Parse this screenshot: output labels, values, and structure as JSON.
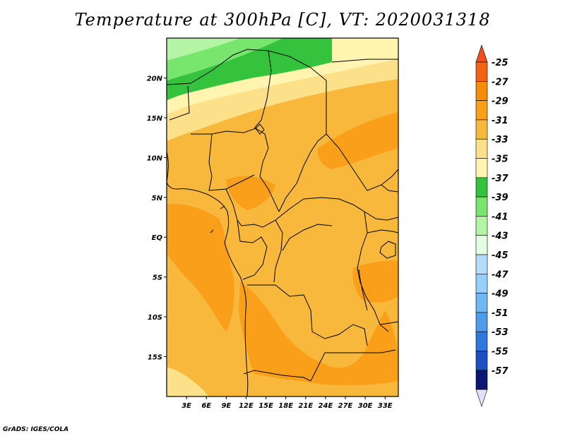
{
  "title": "Temperature at 300hPa [C], VT: 2020031318",
  "credit": "GrADS: IGES/COLA",
  "map": {
    "lon_range": [
      0,
      35
    ],
    "lat_range": [
      -20,
      25
    ],
    "lat_ticks": [
      {
        "value": 20,
        "label": "20N"
      },
      {
        "value": 15,
        "label": "15N"
      },
      {
        "value": 10,
        "label": "10N"
      },
      {
        "value": 5,
        "label": "5N"
      },
      {
        "value": 0,
        "label": "EQ"
      },
      {
        "value": -5,
        "label": "5S"
      },
      {
        "value": -10,
        "label": "10S"
      },
      {
        "value": -15,
        "label": "15S"
      }
    ],
    "lon_ticks": [
      {
        "value": 3,
        "label": "3E"
      },
      {
        "value": 6,
        "label": "6E"
      },
      {
        "value": 9,
        "label": "9E"
      },
      {
        "value": 12,
        "label": "12E"
      },
      {
        "value": 15,
        "label": "15E"
      },
      {
        "value": 18,
        "label": "18E"
      },
      {
        "value": 21,
        "label": "21E"
      },
      {
        "value": 24,
        "label": "24E"
      },
      {
        "value": 27,
        "label": "27E"
      },
      {
        "value": 30,
        "label": "30E"
      },
      {
        "value": 33,
        "label": "33E"
      }
    ]
  },
  "colorbar": {
    "top_arrow_color": "#f0501e",
    "bottom_arrow_color": "#e1e1fa",
    "bins": [
      {
        "label": "-25",
        "color": "#f06414"
      },
      {
        "label": "-27",
        "color": "#f58c0a"
      },
      {
        "label": "-29",
        "color": "#fa9f19"
      },
      {
        "label": "-31",
        "color": "#f8b83c"
      },
      {
        "label": "-33",
        "color": "#fde08a"
      },
      {
        "label": "-35",
        "color": "#fff5b0"
      },
      {
        "label": "-37",
        "color": "#35c33e"
      },
      {
        "label": "-39",
        "color": "#78e56c"
      },
      {
        "label": "-41",
        "color": "#b4f5a5"
      },
      {
        "label": "-43",
        "color": "#e2fde2"
      },
      {
        "label": "-45",
        "color": "#b4dcf9"
      },
      {
        "label": "-47",
        "color": "#96d0f8"
      },
      {
        "label": "-49",
        "color": "#6eb8f3"
      },
      {
        "label": "-51",
        "color": "#4e9ce9"
      },
      {
        "label": "-53",
        "color": "#2f78dc"
      },
      {
        "label": "-55",
        "color": "#1e4fc0"
      },
      {
        "label": "-57",
        "color": "#0b1773"
      }
    ]
  }
}
